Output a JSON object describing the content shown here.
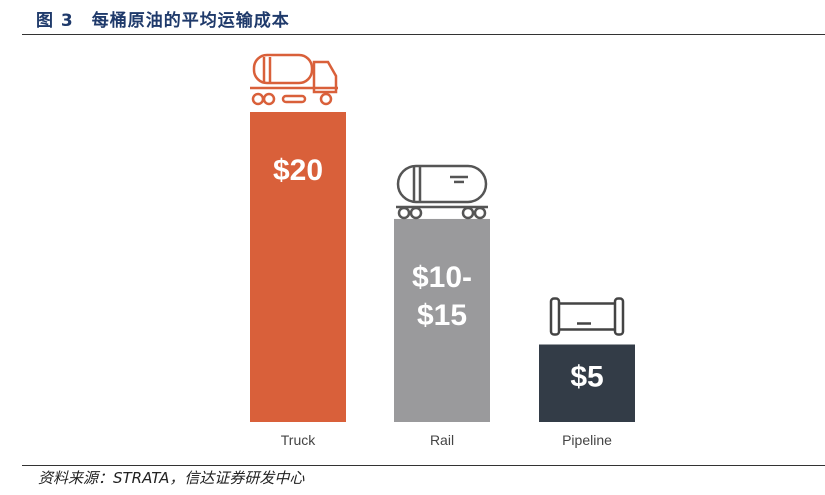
{
  "figure": {
    "label": "图 3",
    "title": "每桶原油的平均运输成本",
    "source": "资料来源：STRATA，信达证券研发中心"
  },
  "chart_data": {
    "type": "bar",
    "title": "",
    "xlabel": "",
    "ylabel": "",
    "ylim": [
      0,
      20
    ],
    "grid": false,
    "legend": "none",
    "categories": [
      "Truck",
      "Rail",
      "Pipeline"
    ],
    "values": [
      20,
      [
        10,
        15
      ],
      5
    ],
    "data_labels": [
      "$20",
      "$10-\n$15",
      "$5"
    ],
    "colors": [
      "#d9603a",
      "#9a9a9c",
      "#333c47"
    ],
    "icons": [
      "tanker-truck-icon",
      "rail-tank-car-icon",
      "pipeline-icon"
    ],
    "icon_colors": [
      "#d9603a",
      "#555555",
      "#444444"
    ]
  }
}
